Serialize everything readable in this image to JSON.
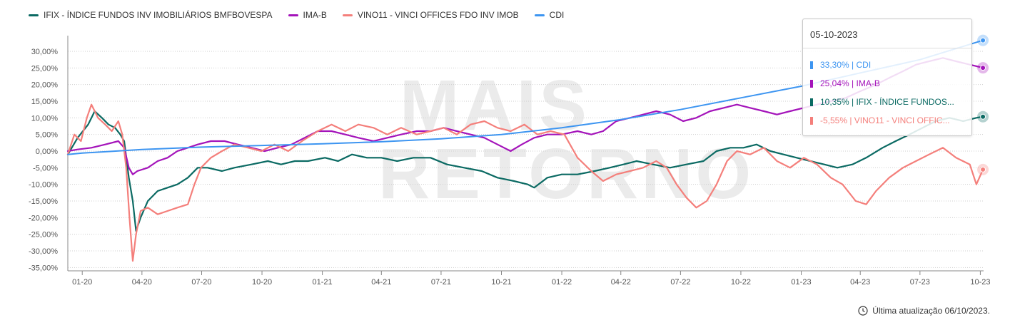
{
  "legend": [
    {
      "label": "IFIX - ÍNDICE FUNDOS INV IMOBILIÁRIOS BMFBOVESPA",
      "color": "#0b6a63"
    },
    {
      "label": "IMA-B",
      "color": "#a414ba"
    },
    {
      "label": "VINO11 - VINCI OFFICES FDO INV IMOB",
      "color": "#f47f7b"
    },
    {
      "label": "CDI",
      "color": "#3d95f1"
    }
  ],
  "tooltip": {
    "date": "05-10-2023",
    "rows": [
      {
        "text": "33,30% | CDI",
        "color": "#3d95f1"
      },
      {
        "text": "25,04% | IMA-B",
        "color": "#a414ba"
      },
      {
        "text": "10,35% | IFIX - ÍNDICE FUNDOS...",
        "color": "#0b6a63"
      },
      {
        "text": "-5,55% | VINO11 - VINCI OFFIC...",
        "color": "#f47f7b"
      }
    ]
  },
  "footer": {
    "text": "Última atualização 06/10/2023."
  },
  "watermark": {
    "line1": "MAIS",
    "line2": "RETORNO"
  },
  "chart_data": {
    "type": "line",
    "x_tick_labels": [
      "01-20",
      "04-20",
      "07-20",
      "10-20",
      "01-21",
      "04-21",
      "07-21",
      "10-21",
      "01-22",
      "04-22",
      "07-22",
      "10-22",
      "01-23",
      "04-23",
      "07-23",
      "10-23"
    ],
    "x_tick_dates": [
      "2020-01-01",
      "2020-04-01",
      "2020-07-01",
      "2020-10-01",
      "2021-01-01",
      "2021-04-01",
      "2021-07-01",
      "2021-10-01",
      "2022-01-01",
      "2022-04-01",
      "2022-07-01",
      "2022-10-01",
      "2023-01-01",
      "2023-04-01",
      "2023-07-01",
      "2023-10-01"
    ],
    "xlim": [
      "2019-12-10",
      "2023-10-06"
    ],
    "y_tick_values": [
      -35,
      -30,
      -25,
      -20,
      -15,
      -10,
      -5,
      0,
      5,
      10,
      15,
      20,
      25,
      30
    ],
    "y_tick_labels": [
      "-35,00%",
      "-30,00%",
      "-25,00%",
      "-20,00%",
      "-15,00%",
      "-10,00%",
      "-5,00%",
      "0,00%",
      "5,00%",
      "10,00%",
      "15,00%",
      "20,00%",
      "25,00%",
      "30,00%"
    ],
    "ylim": [
      -36,
      33
    ],
    "grid": true,
    "legend_position": "top-left",
    "series": [
      {
        "name": "IFIX - ÍNDICE FUNDOS INV IMOBILIÁRIOS BMFBOVESPA",
        "color": "#0b6a63",
        "points": [
          [
            "2019-12-10",
            -1
          ],
          [
            "2019-12-25",
            4
          ],
          [
            "2020-01-10",
            8
          ],
          [
            "2020-01-20",
            12
          ],
          [
            "2020-01-31",
            10
          ],
          [
            "2020-02-10",
            8
          ],
          [
            "2020-02-20",
            7
          ],
          [
            "2020-02-28",
            5
          ],
          [
            "2020-03-05",
            3
          ],
          [
            "2020-03-12",
            -8
          ],
          [
            "2020-03-18",
            -15
          ],
          [
            "2020-03-23",
            -24
          ],
          [
            "2020-03-30",
            -20
          ],
          [
            "2020-04-10",
            -15
          ],
          [
            "2020-04-25",
            -12
          ],
          [
            "2020-05-10",
            -11
          ],
          [
            "2020-05-25",
            -10
          ],
          [
            "2020-06-10",
            -8
          ],
          [
            "2020-06-25",
            -5
          ],
          [
            "2020-07-10",
            -5
          ],
          [
            "2020-08-01",
            -6
          ],
          [
            "2020-08-20",
            -5
          ],
          [
            "2020-09-15",
            -4
          ],
          [
            "2020-10-10",
            -3
          ],
          [
            "2020-10-30",
            -4
          ],
          [
            "2020-11-20",
            -3
          ],
          [
            "2020-12-10",
            -3
          ],
          [
            "2021-01-05",
            -2
          ],
          [
            "2021-01-25",
            -3
          ],
          [
            "2021-02-15",
            -1
          ],
          [
            "2021-03-10",
            -2
          ],
          [
            "2021-04-01",
            -2
          ],
          [
            "2021-04-25",
            -3
          ],
          [
            "2021-05-20",
            -2
          ],
          [
            "2021-06-15",
            -2
          ],
          [
            "2021-07-10",
            -4
          ],
          [
            "2021-08-05",
            -5
          ],
          [
            "2021-09-01",
            -6
          ],
          [
            "2021-09-25",
            -8
          ],
          [
            "2021-10-20",
            -9
          ],
          [
            "2021-11-10",
            -10
          ],
          [
            "2021-11-20",
            -11
          ],
          [
            "2021-12-10",
            -8
          ],
          [
            "2022-01-01",
            -7
          ],
          [
            "2022-01-25",
            -7
          ],
          [
            "2022-02-20",
            -6
          ],
          [
            "2022-03-15",
            -5
          ],
          [
            "2022-04-05",
            -4
          ],
          [
            "2022-04-25",
            -3
          ],
          [
            "2022-05-20",
            -4
          ],
          [
            "2022-06-15",
            -5
          ],
          [
            "2022-07-10",
            -4
          ],
          [
            "2022-08-05",
            -3
          ],
          [
            "2022-08-25",
            0
          ],
          [
            "2022-09-15",
            1
          ],
          [
            "2022-10-05",
            1
          ],
          [
            "2022-10-25",
            2
          ],
          [
            "2022-11-15",
            0
          ],
          [
            "2022-12-05",
            -1
          ],
          [
            "2022-12-25",
            -2
          ],
          [
            "2023-01-15",
            -3
          ],
          [
            "2023-02-05",
            -4
          ],
          [
            "2023-02-25",
            -5
          ],
          [
            "2023-03-20",
            -4
          ],
          [
            "2023-04-10",
            -2
          ],
          [
            "2023-05-05",
            1
          ],
          [
            "2023-05-25",
            3
          ],
          [
            "2023-06-15",
            5
          ],
          [
            "2023-07-05",
            7
          ],
          [
            "2023-07-25",
            9
          ],
          [
            "2023-08-15",
            10
          ],
          [
            "2023-09-05",
            9
          ],
          [
            "2023-09-25",
            10
          ],
          [
            "2023-10-05",
            10.35
          ]
        ]
      },
      {
        "name": "IMA-B",
        "color": "#a414ba",
        "points": [
          [
            "2019-12-10",
            0
          ],
          [
            "2019-12-25",
            0.5
          ],
          [
            "2020-01-15",
            1
          ],
          [
            "2020-02-05",
            2
          ],
          [
            "2020-02-25",
            3
          ],
          [
            "2020-03-05",
            1
          ],
          [
            "2020-03-12",
            -5
          ],
          [
            "2020-03-18",
            -7
          ],
          [
            "2020-03-25",
            -6
          ],
          [
            "2020-04-10",
            -5
          ],
          [
            "2020-04-25",
            -3
          ],
          [
            "2020-05-10",
            -2
          ],
          [
            "2020-05-25",
            0
          ],
          [
            "2020-06-10",
            1
          ],
          [
            "2020-06-25",
            2
          ],
          [
            "2020-07-15",
            3
          ],
          [
            "2020-08-05",
            3
          ],
          [
            "2020-08-25",
            2
          ],
          [
            "2020-09-15",
            1
          ],
          [
            "2020-10-05",
            0
          ],
          [
            "2020-10-25",
            1
          ],
          [
            "2020-11-15",
            2
          ],
          [
            "2020-12-05",
            4
          ],
          [
            "2020-12-25",
            6
          ],
          [
            "2021-01-15",
            6
          ],
          [
            "2021-02-05",
            5
          ],
          [
            "2021-02-25",
            4
          ],
          [
            "2021-03-20",
            3
          ],
          [
            "2021-04-10",
            4
          ],
          [
            "2021-05-01",
            5
          ],
          [
            "2021-05-25",
            6
          ],
          [
            "2021-06-15",
            6
          ],
          [
            "2021-07-05",
            7
          ],
          [
            "2021-07-25",
            6
          ],
          [
            "2021-08-15",
            5
          ],
          [
            "2021-09-05",
            4
          ],
          [
            "2021-09-25",
            2
          ],
          [
            "2021-10-15",
            0
          ],
          [
            "2021-11-01",
            2
          ],
          [
            "2021-11-20",
            4
          ],
          [
            "2021-12-10",
            5
          ],
          [
            "2022-01-01",
            5
          ],
          [
            "2022-01-25",
            6
          ],
          [
            "2022-02-15",
            5
          ],
          [
            "2022-03-05",
            6
          ],
          [
            "2022-03-25",
            9
          ],
          [
            "2022-04-15",
            10
          ],
          [
            "2022-05-05",
            11
          ],
          [
            "2022-05-25",
            12
          ],
          [
            "2022-06-15",
            11
          ],
          [
            "2022-07-05",
            9
          ],
          [
            "2022-07-25",
            10
          ],
          [
            "2022-08-15",
            12
          ],
          [
            "2022-09-05",
            13
          ],
          [
            "2022-09-25",
            14
          ],
          [
            "2022-10-15",
            13
          ],
          [
            "2022-11-05",
            12
          ],
          [
            "2022-11-25",
            11
          ],
          [
            "2022-12-15",
            12
          ],
          [
            "2023-01-05",
            13
          ],
          [
            "2023-01-25",
            14
          ],
          [
            "2023-02-15",
            15
          ],
          [
            "2023-03-10",
            16
          ],
          [
            "2023-04-01",
            18
          ],
          [
            "2023-04-25",
            20
          ],
          [
            "2023-05-15",
            22
          ],
          [
            "2023-06-05",
            24
          ],
          [
            "2023-06-25",
            26
          ],
          [
            "2023-07-15",
            27
          ],
          [
            "2023-08-05",
            28
          ],
          [
            "2023-08-25",
            27
          ],
          [
            "2023-09-15",
            26
          ],
          [
            "2023-10-05",
            25.04
          ]
        ]
      },
      {
        "name": "VINO11 - VINCI OFFICES FDO INV IMOB",
        "color": "#f47f7b",
        "points": [
          [
            "2019-12-10",
            -1
          ],
          [
            "2019-12-20",
            5
          ],
          [
            "2019-12-30",
            3
          ],
          [
            "2020-01-08",
            10
          ],
          [
            "2020-01-15",
            14
          ],
          [
            "2020-01-25",
            10
          ],
          [
            "2020-02-05",
            8
          ],
          [
            "2020-02-15",
            6
          ],
          [
            "2020-02-25",
            9
          ],
          [
            "2020-03-02",
            5
          ],
          [
            "2020-03-08",
            -5
          ],
          [
            "2020-03-13",
            -20
          ],
          [
            "2020-03-18",
            -33
          ],
          [
            "2020-03-23",
            -25
          ],
          [
            "2020-03-30",
            -18
          ],
          [
            "2020-04-10",
            -17
          ],
          [
            "2020-04-25",
            -19
          ],
          [
            "2020-05-10",
            -18
          ],
          [
            "2020-05-25",
            -17
          ],
          [
            "2020-06-10",
            -16
          ],
          [
            "2020-06-20",
            -10
          ],
          [
            "2020-06-30",
            -5
          ],
          [
            "2020-07-15",
            -2
          ],
          [
            "2020-08-01",
            0
          ],
          [
            "2020-08-20",
            2
          ],
          [
            "2020-09-10",
            1
          ],
          [
            "2020-09-30",
            0
          ],
          [
            "2020-10-20",
            2
          ],
          [
            "2020-11-10",
            0
          ],
          [
            "2020-12-01",
            3
          ],
          [
            "2020-12-25",
            6
          ],
          [
            "2021-01-15",
            8
          ],
          [
            "2021-02-05",
            6
          ],
          [
            "2021-02-25",
            8
          ],
          [
            "2021-03-20",
            7
          ],
          [
            "2021-04-10",
            5
          ],
          [
            "2021-05-01",
            7
          ],
          [
            "2021-05-25",
            5
          ],
          [
            "2021-06-15",
            6
          ],
          [
            "2021-07-05",
            7
          ],
          [
            "2021-07-25",
            5
          ],
          [
            "2021-08-15",
            8
          ],
          [
            "2021-09-05",
            9
          ],
          [
            "2021-09-25",
            7
          ],
          [
            "2021-10-15",
            6
          ],
          [
            "2021-11-05",
            8
          ],
          [
            "2021-11-25",
            5
          ],
          [
            "2021-12-15",
            6
          ],
          [
            "2022-01-05",
            5
          ],
          [
            "2022-01-25",
            -2
          ],
          [
            "2022-02-15",
            -6
          ],
          [
            "2022-03-05",
            -9
          ],
          [
            "2022-03-25",
            -7
          ],
          [
            "2022-04-15",
            -6
          ],
          [
            "2022-05-05",
            -5
          ],
          [
            "2022-05-25",
            -3
          ],
          [
            "2022-06-10",
            -5
          ],
          [
            "2022-06-25",
            -10
          ],
          [
            "2022-07-10",
            -14
          ],
          [
            "2022-07-25",
            -17
          ],
          [
            "2022-08-10",
            -15
          ],
          [
            "2022-08-25",
            -10
          ],
          [
            "2022-09-10",
            -3
          ],
          [
            "2022-09-25",
            0
          ],
          [
            "2022-10-15",
            -1
          ],
          [
            "2022-11-05",
            1
          ],
          [
            "2022-11-25",
            -3
          ],
          [
            "2022-12-15",
            -5
          ],
          [
            "2023-01-05",
            -2
          ],
          [
            "2023-01-25",
            -4
          ],
          [
            "2023-02-15",
            -8
          ],
          [
            "2023-03-05",
            -10
          ],
          [
            "2023-03-25",
            -15
          ],
          [
            "2023-04-10",
            -16
          ],
          [
            "2023-04-25",
            -12
          ],
          [
            "2023-05-15",
            -8
          ],
          [
            "2023-06-05",
            -5
          ],
          [
            "2023-06-25",
            -3
          ],
          [
            "2023-07-15",
            -1
          ],
          [
            "2023-08-05",
            1
          ],
          [
            "2023-08-25",
            -2
          ],
          [
            "2023-09-15",
            -4
          ],
          [
            "2023-09-25",
            -10
          ],
          [
            "2023-10-05",
            -5.55
          ]
        ]
      },
      {
        "name": "CDI",
        "color": "#3d95f1",
        "points": [
          [
            "2019-12-10",
            -1
          ],
          [
            "2020-01-01",
            -0.6
          ],
          [
            "2020-04-01",
            0.5
          ],
          [
            "2020-07-01",
            1.2
          ],
          [
            "2020-10-01",
            1.7
          ],
          [
            "2021-01-01",
            2.2
          ],
          [
            "2021-04-01",
            2.8
          ],
          [
            "2021-07-01",
            3.7
          ],
          [
            "2021-10-01",
            5
          ],
          [
            "2022-01-01",
            7
          ],
          [
            "2022-04-01",
            9.5
          ],
          [
            "2022-07-01",
            12.5
          ],
          [
            "2022-10-01",
            16
          ],
          [
            "2023-01-01",
            19.5
          ],
          [
            "2023-04-01",
            23.5
          ],
          [
            "2023-07-01",
            27.5
          ],
          [
            "2023-10-05",
            33.3
          ]
        ]
      }
    ]
  }
}
